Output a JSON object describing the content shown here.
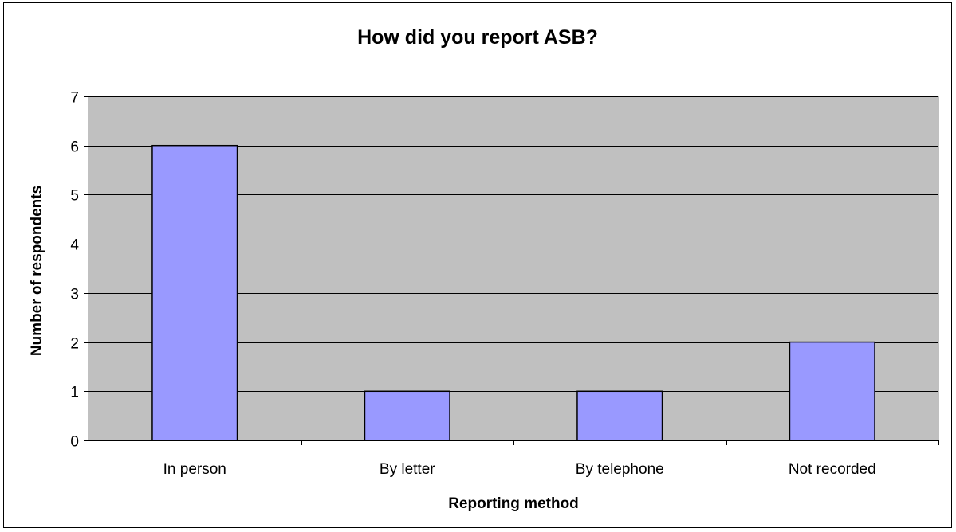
{
  "chart_data": {
    "type": "bar",
    "title": "How did you report ASB?",
    "xlabel": "Reporting method",
    "ylabel": "Number of respondents",
    "categories": [
      "In person",
      "By letter",
      "By telephone",
      "Not recorded"
    ],
    "values": [
      6,
      1,
      1,
      2
    ],
    "ylim": [
      0,
      7
    ],
    "yticks": [
      0,
      1,
      2,
      3,
      4,
      5,
      6,
      7
    ],
    "grid": true,
    "legend": "none",
    "colors": {
      "bar_fill": "#9999ff",
      "plot_background": "#c0c0c0",
      "gridline": "#000000"
    }
  }
}
